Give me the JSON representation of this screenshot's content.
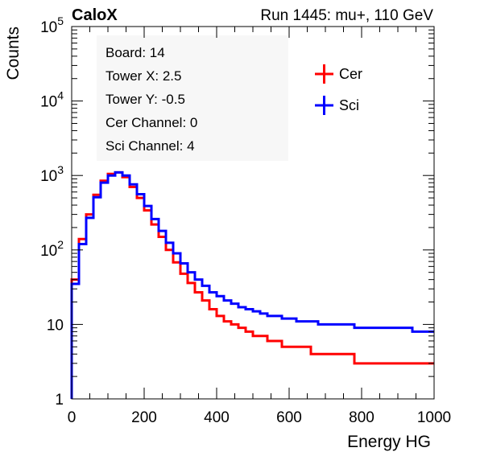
{
  "header": {
    "brand": "CaloX",
    "run_info": "Run 1445: mu+, 110 GeV"
  },
  "info_box": {
    "lines": [
      "Board: 14",
      "Tower X: 2.5",
      "Tower Y: -0.5",
      "Cer Channel: 0",
      "Sci Channel: 4"
    ]
  },
  "chart_data": {
    "type": "line",
    "histogram": true,
    "title": "",
    "xlabel": "Energy HG",
    "ylabel": "Counts",
    "xlim": [
      0,
      1000
    ],
    "ylim": [
      1,
      100000
    ],
    "yscale": "log",
    "grid": false,
    "legend_position": "top-right",
    "x_ticks": [
      0,
      200,
      400,
      600,
      800,
      1000
    ],
    "x_tick_labels": [
      "0",
      "200",
      "400",
      "600",
      "800",
      "1000"
    ],
    "y_ticks": [
      1,
      10,
      100,
      1000,
      10000,
      100000
    ],
    "y_tick_labels": [
      {
        "base": "1",
        "exp": ""
      },
      {
        "base": "10",
        "exp": ""
      },
      {
        "base": "10",
        "exp": "2"
      },
      {
        "base": "10",
        "exp": "3"
      },
      {
        "base": "10",
        "exp": "4"
      },
      {
        "base": "10",
        "exp": "5"
      }
    ],
    "x": [
      10,
      30,
      50,
      70,
      90,
      110,
      130,
      150,
      170,
      190,
      210,
      230,
      250,
      270,
      290,
      310,
      330,
      350,
      370,
      390,
      410,
      430,
      450,
      470,
      490,
      510,
      530,
      550,
      570,
      590,
      610,
      630,
      650,
      670,
      690,
      710,
      730,
      750,
      770,
      790,
      810,
      830,
      850,
      870,
      890,
      910,
      930,
      950,
      970,
      990
    ],
    "series": [
      {
        "name": "Cer",
        "color": "#ff0000",
        "values": [
          40,
          140,
          300,
          550,
          850,
          1050,
          1100,
          950,
          700,
          500,
          340,
          220,
          150,
          100,
          68,
          48,
          36,
          27,
          21,
          16,
          13,
          11,
          10,
          9,
          8,
          7,
          7,
          6,
          6,
          5,
          5,
          5,
          5,
          4,
          4,
          4,
          4,
          4,
          4,
          3,
          3,
          3,
          3,
          3,
          3,
          3,
          3,
          3,
          3,
          3
        ]
      },
      {
        "name": "Sci",
        "color": "#0000ff",
        "values": [
          35,
          120,
          270,
          510,
          800,
          1000,
          1100,
          1000,
          760,
          560,
          390,
          260,
          180,
          125,
          90,
          66,
          50,
          40,
          33,
          27,
          24,
          21,
          19,
          17,
          16,
          15,
          14,
          13,
          13,
          12,
          12,
          11,
          11,
          11,
          10,
          10,
          10,
          10,
          10,
          9,
          9,
          9,
          9,
          9,
          9,
          9,
          9,
          8,
          8,
          8
        ]
      }
    ]
  }
}
